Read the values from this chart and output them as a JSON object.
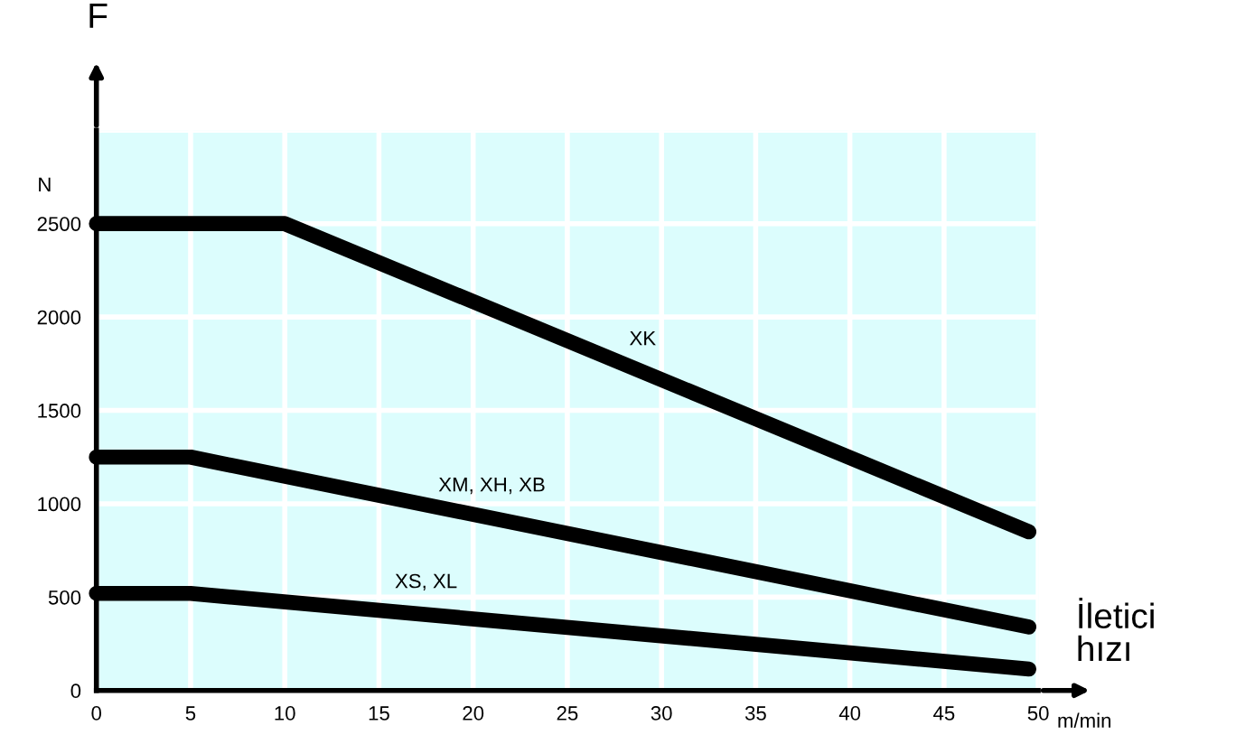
{
  "chart_data": {
    "type": "line",
    "xlabel": "İletici\nhızı",
    "ylabel": "F",
    "annotations": [
      "N",
      "m/min"
    ],
    "xlim": [
      0,
      50
    ],
    "ylim": [
      0,
      3000
    ],
    "xticks": [
      0,
      5,
      10,
      15,
      20,
      25,
      30,
      35,
      40,
      45,
      50
    ],
    "yticks": [
      0,
      500,
      1000,
      1500,
      2000,
      2500,
      {
        "value": 3000,
        "label": null
      }
    ],
    "grid": true,
    "legend": false,
    "series": [
      {
        "name": "XK",
        "color": "#000000",
        "x": [
          0,
          10,
          49.5
        ],
        "values": [
          2500,
          2500,
          850
        ]
      },
      {
        "name": "XM, XH, XB",
        "color": "#000000",
        "x": [
          0,
          5,
          49.5
        ],
        "values": [
          1250,
          1250,
          340
        ]
      },
      {
        "name": "XS, XL",
        "color": "#000000",
        "x": [
          0,
          5,
          49.5
        ],
        "values": [
          520,
          520,
          115
        ]
      }
    ]
  }
}
